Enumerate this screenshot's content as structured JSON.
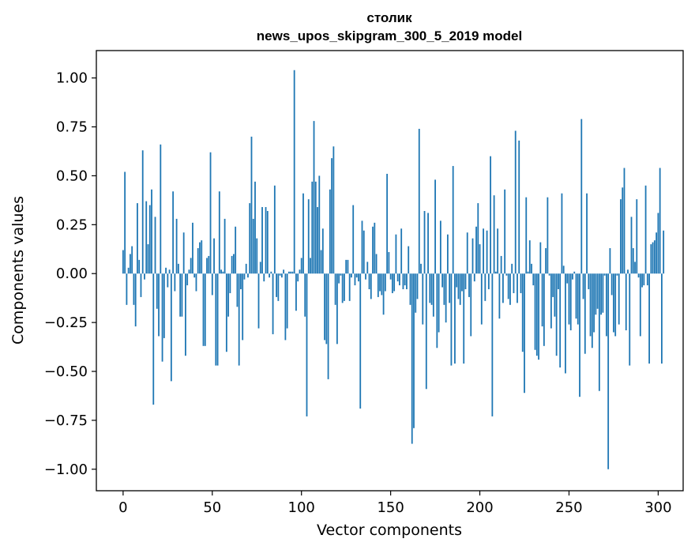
{
  "chart_data": {
    "type": "bar",
    "title": "столик",
    "subtitle": "news_upos_skipgram_300_5_2019 model",
    "xlabel": "Vector components",
    "ylabel": "Components values",
    "xlim": [
      -15,
      314
    ],
    "ylim": [
      -1.11,
      1.14
    ],
    "xticks": [
      0,
      50,
      100,
      150,
      200,
      250,
      300
    ],
    "yticks": [
      -1.0,
      -0.75,
      -0.5,
      -0.25,
      0.0,
      0.25,
      0.5,
      0.75,
      1.0
    ],
    "ytick_labels": [
      "−1.00",
      "−0.75",
      "−0.50",
      "−0.25",
      "0.00",
      "0.25",
      "0.50",
      "0.75",
      "1.00"
    ],
    "bar_color": "#1f77b4",
    "values": [
      0.12,
      0.52,
      -0.16,
      0.03,
      0.1,
      0.14,
      -0.16,
      -0.27,
      0.36,
      0.07,
      -0.12,
      0.63,
      -0.03,
      0.37,
      0.15,
      0.35,
      0.43,
      -0.67,
      0.29,
      -0.18,
      -0.32,
      0.66,
      -0.45,
      -0.33,
      0.03,
      -0.07,
      0.02,
      -0.55,
      0.42,
      -0.09,
      0.28,
      0.05,
      -0.22,
      -0.22,
      0.21,
      -0.42,
      -0.06,
      0.02,
      0.08,
      0.26,
      -0.02,
      -0.09,
      0.13,
      0.16,
      0.17,
      -0.37,
      -0.37,
      0.08,
      0.09,
      0.62,
      -0.11,
      0.18,
      -0.47,
      -0.47,
      0.42,
      0.02,
      0.01,
      0.28,
      -0.4,
      -0.22,
      -0.1,
      0.09,
      0.1,
      0.24,
      -0.17,
      -0.47,
      -0.08,
      -0.34,
      -0.03,
      0.05,
      -0.02,
      0.36,
      0.7,
      0.28,
      0.47,
      0.18,
      -0.28,
      0.06,
      0.34,
      -0.04,
      0.34,
      0.32,
      -0.02,
      0.01,
      -0.31,
      0.45,
      -0.12,
      -0.14,
      -0.01,
      -0.02,
      0.02,
      -0.34,
      -0.28,
      0.01,
      0.01,
      0.01,
      1.04,
      -0.19,
      -0.04,
      0.02,
      0.08,
      0.41,
      -0.22,
      -0.73,
      0.38,
      0.08,
      0.47,
      0.78,
      0.47,
      0.34,
      0.5,
      0.12,
      0.23,
      -0.34,
      -0.36,
      -0.54,
      0.43,
      0.59,
      0.65,
      -0.16,
      -0.36,
      -0.05,
      -0.01,
      -0.15,
      -0.14,
      0.07,
      0.07,
      -0.14,
      -0.02,
      0.35,
      -0.06,
      -0.02,
      -0.04,
      -0.69,
      0.27,
      0.22,
      -0.03,
      0.06,
      -0.08,
      -0.13,
      0.24,
      0.26,
      0.1,
      -0.12,
      -0.09,
      -0.11,
      -0.21,
      -0.09,
      0.51,
      0.11,
      -0.03,
      -0.1,
      -0.09,
      0.2,
      -0.04,
      -0.06,
      0.23,
      -0.08,
      -0.06,
      -0.08,
      0.14,
      -0.16,
      -0.87,
      -0.79,
      -0.2,
      -0.13,
      0.74,
      0.05,
      -0.26,
      0.32,
      -0.59,
      0.31,
      -0.15,
      -0.16,
      -0.22,
      0.48,
      -0.38,
      -0.3,
      0.27,
      -0.07,
      -0.16,
      -0.25,
      0.2,
      -0.15,
      -0.47,
      0.55,
      -0.46,
      -0.07,
      -0.13,
      -0.16,
      -0.09,
      -0.46,
      -0.08,
      0.21,
      -0.12,
      -0.32,
      0.18,
      -0.04,
      0.24,
      0.36,
      0.15,
      -0.26,
      0.23,
      -0.14,
      0.22,
      -0.08,
      0.6,
      -0.73,
      0.4,
      0.01,
      0.23,
      -0.23,
      0.09,
      -0.15,
      0.43,
      -0.01,
      -0.13,
      -0.16,
      0.05,
      -0.1,
      0.73,
      -0.15,
      0.68,
      -0.1,
      -0.4,
      -0.61,
      0.39,
      0.01,
      0.17,
      0.05,
      -0.06,
      -0.39,
      -0.42,
      -0.44,
      0.16,
      -0.27,
      -0.37,
      0.13,
      0.39,
      -0.01,
      -0.28,
      -0.12,
      -0.22,
      -0.42,
      -0.08,
      -0.48,
      0.41,
      0.04,
      -0.51,
      -0.05,
      -0.26,
      -0.29,
      -0.03,
      0.01,
      -0.23,
      -0.26,
      -0.63,
      0.79,
      -0.13,
      -0.41,
      0.41,
      -0.08,
      -0.32,
      -0.38,
      -0.3,
      -0.21,
      -0.18,
      -0.6,
      -0.21,
      -0.2,
      -0.01,
      -0.32,
      -1.0,
      0.13,
      -0.11,
      -0.3,
      -0.32,
      -0.01,
      -0.26,
      0.38,
      0.44,
      0.54,
      -0.29,
      0.02,
      -0.47,
      0.29,
      0.13,
      0.06,
      0.38,
      -0.02,
      -0.32,
      -0.07,
      -0.06,
      0.45,
      -0.06,
      -0.46,
      0.15,
      0.16,
      0.17,
      0.21,
      0.31,
      0.54,
      -0.46,
      0.22
    ]
  }
}
